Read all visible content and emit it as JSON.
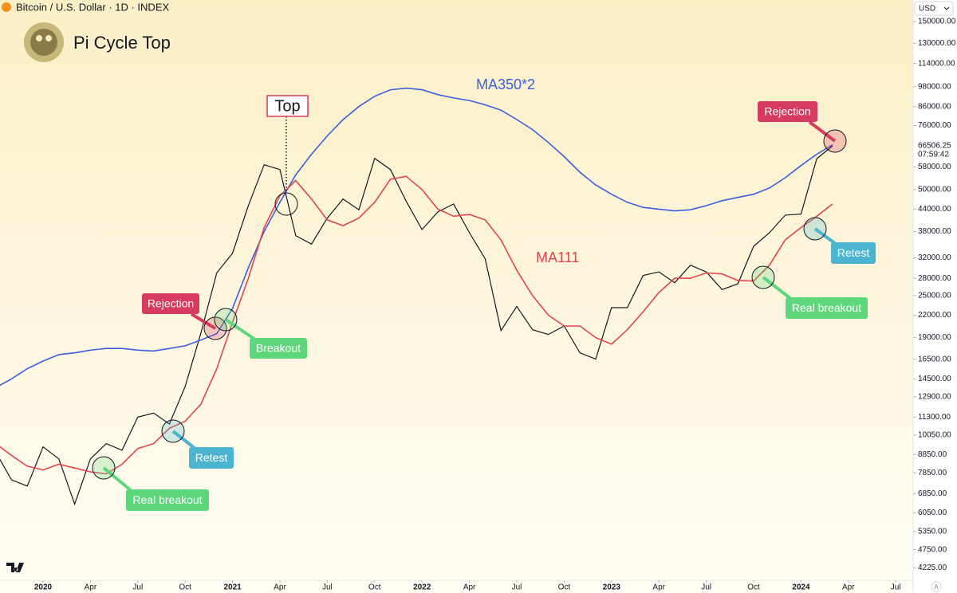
{
  "header": {
    "symbol": "Bitcoin / U.S. Dollar · 1D · INDEX",
    "title": "Pi Cycle Top"
  },
  "chart_data": {
    "type": "line",
    "log_scale": true,
    "x": [
      "2019-10",
      "2019-11",
      "2019-12",
      "2020-01",
      "2020-02",
      "2020-03",
      "2020-04",
      "2020-05",
      "2020-06",
      "2020-07",
      "2020-08",
      "2020-09",
      "2020-10",
      "2020-11",
      "2020-12",
      "2021-01",
      "2021-02",
      "2021-03",
      "2021-04",
      "2021-05",
      "2021-06",
      "2021-07",
      "2021-08",
      "2021-09",
      "2021-10",
      "2021-11",
      "2021-12",
      "2022-01",
      "2022-02",
      "2022-03",
      "2022-04",
      "2022-05",
      "2022-06",
      "2022-07",
      "2022-08",
      "2022-09",
      "2022-10",
      "2022-11",
      "2022-12",
      "2023-01",
      "2023-02",
      "2023-03",
      "2023-04",
      "2023-05",
      "2023-06",
      "2023-07",
      "2023-08",
      "2023-09",
      "2023-10",
      "2023-11",
      "2023-12",
      "2024-01",
      "2024-02",
      "2024-03"
    ],
    "series": [
      {
        "color": "#131722",
        "values": [
          9000,
          7500,
          7200,
          9300,
          8600,
          6400,
          8600,
          9500,
          9100,
          11300,
          11600,
          10800,
          13800,
          19600,
          29000,
          33000,
          45000,
          58800,
          57000,
          37000,
          35000,
          41500,
          47000,
          43800,
          61300,
          57000,
          46300,
          38500,
          43200,
          45500,
          37700,
          31800,
          19900,
          23300,
          20000,
          19400,
          20500,
          17200,
          16500,
          23100,
          23100,
          28500,
          29200,
          27200,
          30500,
          29200,
          26000,
          27000,
          34500,
          37700,
          42300,
          42600,
          61200,
          66506.25
        ]
      },
      {
        "name": "MA350*2",
        "color": "#3a5fe0",
        "values": [
          13700,
          14500,
          15500,
          16300,
          17000,
          17200,
          17500,
          17700,
          17700,
          17500,
          17400,
          17700,
          18000,
          18700,
          19500,
          23000,
          30000,
          38000,
          46000,
          55000,
          63000,
          71000,
          79000,
          86000,
          92000,
          96000,
          97000,
          96000,
          93000,
          91000,
          89500,
          87000,
          84000,
          79000,
          74000,
          68000,
          62000,
          56000,
          51500,
          48500,
          46000,
          44500,
          44000,
          43500,
          43800,
          45000,
          46500,
          47500,
          48500,
          50500,
          54000,
          58500,
          63000,
          67000
        ]
      },
      {
        "name": "MA111",
        "color": "#e0444e",
        "values": [
          9500,
          8800,
          8200,
          8000,
          8300,
          8100,
          7900,
          7800,
          8300,
          9200,
          9500,
          10500,
          11000,
          12300,
          15500,
          21000,
          28000,
          39000,
          48000,
          53000,
          47000,
          41000,
          39500,
          41500,
          46000,
          53500,
          54500,
          50000,
          44000,
          42000,
          42500,
          41000,
          36000,
          29500,
          25000,
          22000,
          20500,
          20500,
          19000,
          18200,
          20000,
          22500,
          25500,
          28000,
          28000,
          29000,
          28800,
          27600,
          27500,
          30500,
          36000,
          39000,
          42000,
          45500
        ]
      }
    ],
    "ylim": [
      3890,
      172600
    ],
    "yticks": [
      {
        "value": 150000,
        "label": "150000.00"
      },
      {
        "value": 130000,
        "label": "130000.00"
      },
      {
        "value": 114000,
        "label": "114000.00"
      },
      {
        "value": 98000,
        "label": "98000.00"
      },
      {
        "value": 86000,
        "label": "86000.00"
      },
      {
        "value": 76000,
        "label": "76000.00"
      },
      {
        "value": 58000,
        "label": "58000.00"
      },
      {
        "value": 50000,
        "label": "50000.00"
      },
      {
        "value": 44000,
        "label": "44000.00"
      },
      {
        "value": 38000,
        "label": "38000.00"
      },
      {
        "value": 32000,
        "label": "32000.00"
      },
      {
        "value": 28000,
        "label": "28000.00"
      },
      {
        "value": 25000,
        "label": "25000.00"
      },
      {
        "value": 22000,
        "label": "22000.00"
      },
      {
        "value": 19000,
        "label": "19000.00"
      },
      {
        "value": 16500,
        "label": "16500.00"
      },
      {
        "value": 14500,
        "label": "14500.00"
      },
      {
        "value": 12900,
        "label": "12900.00"
      },
      {
        "value": 11300,
        "label": "11300.00"
      },
      {
        "value": 10050,
        "label": "10050.00"
      },
      {
        "value": 8850,
        "label": "8850.00"
      },
      {
        "value": 7850,
        "label": "7850.00"
      },
      {
        "value": 6850,
        "label": "6850.00"
      },
      {
        "value": 6050,
        "label": "6050.00"
      },
      {
        "value": 5350,
        "label": "5350.00"
      },
      {
        "value": 4750,
        "label": "4750.00"
      },
      {
        "value": 4225,
        "label": "4225.00"
      }
    ],
    "xticks": [
      {
        "value": "2020-01",
        "label": "2020"
      },
      {
        "value": "2020-04",
        "label": "Apr"
      },
      {
        "value": "2020-07",
        "label": "Jul"
      },
      {
        "value": "2020-10",
        "label": "Oct"
      },
      {
        "value": "2021-01",
        "label": "2021"
      },
      {
        "value": "2021-04",
        "label": "Apr"
      },
      {
        "value": "2021-07",
        "label": "Jul"
      },
      {
        "value": "2021-10",
        "label": "Oct"
      },
      {
        "value": "2022-01",
        "label": "2022"
      },
      {
        "value": "2022-04",
        "label": "Apr"
      },
      {
        "value": "2022-07",
        "label": "Jul"
      },
      {
        "value": "2022-10",
        "label": "Oct"
      },
      {
        "value": "2023-01",
        "label": "2023"
      },
      {
        "value": "2023-04",
        "label": "Apr"
      },
      {
        "value": "2023-07",
        "label": "Jul"
      },
      {
        "value": "2023-10",
        "label": "Oct"
      },
      {
        "value": "2024-01",
        "label": "2024"
      },
      {
        "value": "2024-04",
        "label": "Apr"
      },
      {
        "value": "2024-07",
        "label": "Jul"
      }
    ],
    "grid": false,
    "last_price": 66506.25,
    "countdown": "07:59:42",
    "currency": "USD",
    "scale_mode": "A",
    "annotations": [
      {
        "text": "Top",
        "color": "#d63a5e"
      },
      {
        "text": "Rejection",
        "color": "#d63a5e"
      },
      {
        "text": "Breakout",
        "color": "#5dd67c"
      },
      {
        "text": "Retest",
        "color": "#4bb5cf"
      },
      {
        "text": "Real breakout",
        "color": "#5dd67c"
      },
      {
        "text": "Rejection",
        "color": "#d63a5e"
      },
      {
        "text": "Retest",
        "color": "#4bb5cf"
      },
      {
        "text": "Real breakout",
        "color": "#5dd67c"
      }
    ]
  }
}
